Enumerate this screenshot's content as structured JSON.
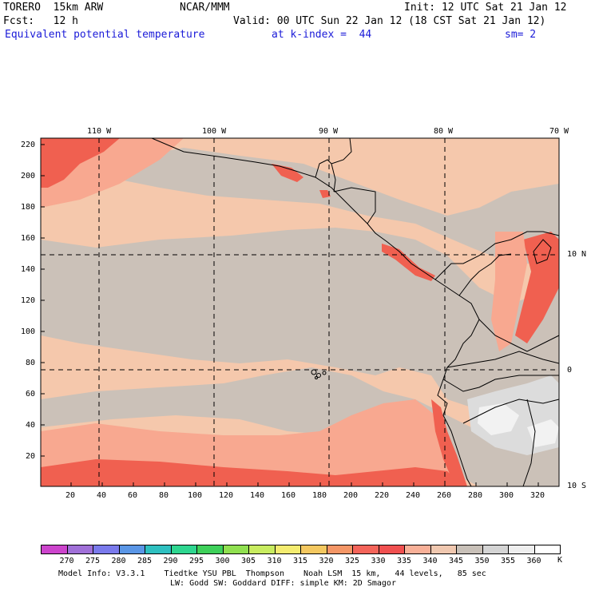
{
  "header": {
    "model": "TORERO  15km ARW",
    "center": "NCAR/MMM",
    "init": "Init: 12 UTC Sat 21 Jan 12",
    "fcst": "Fcst:   12 h",
    "valid": "Valid: 00 UTC Sun 22 Jan 12 (18 CST Sat 21 Jan 12)",
    "field": "Equivalent potential temperature",
    "level": "at k-index =  44",
    "smooth": "sm= 2"
  },
  "map": {
    "lon_labels": [
      "110 W",
      "100 W",
      "90 W",
      "80 W",
      "70 W"
    ],
    "lat_labels": [
      "10 N",
      "0",
      "10 S"
    ],
    "y_ticks": [
      "220",
      "200",
      "180",
      "160",
      "140",
      "120",
      "100",
      "80",
      "60",
      "40",
      "20"
    ],
    "x_ticks": [
      "20",
      "40",
      "60",
      "80",
      "100",
      "120",
      "140",
      "160",
      "180",
      "200",
      "220",
      "240",
      "260",
      "280",
      "300",
      "320"
    ]
  },
  "legend": {
    "unit": "K",
    "levels": [
      "270",
      "275",
      "280",
      "285",
      "290",
      "295",
      "300",
      "305",
      "310",
      "315",
      "320",
      "325",
      "330",
      "335",
      "340",
      "345",
      "350",
      "355",
      "360"
    ],
    "colors": [
      "#cc44cc",
      "#a070d8",
      "#7a7aec",
      "#5a96e6",
      "#2ec0c0",
      "#2ed690",
      "#3ed05a",
      "#90e050",
      "#c8ec60",
      "#f4ec70",
      "#f4c860",
      "#f49666",
      "#f4645a",
      "#f05050",
      "#f8b098",
      "#f0c8b0",
      "#c8c0b8",
      "#d4d4d4",
      "#eeeeee",
      "#ffffff"
    ]
  },
  "footer": {
    "line1": "Model Info: V3.3.1    Tiedtke YSU PBL  Thompson    Noah LSM  15 km,   44 levels,   85 sec",
    "line2": "LW: Godd SW: Goddard DIFF: simple KM: 2D Smagor"
  }
}
